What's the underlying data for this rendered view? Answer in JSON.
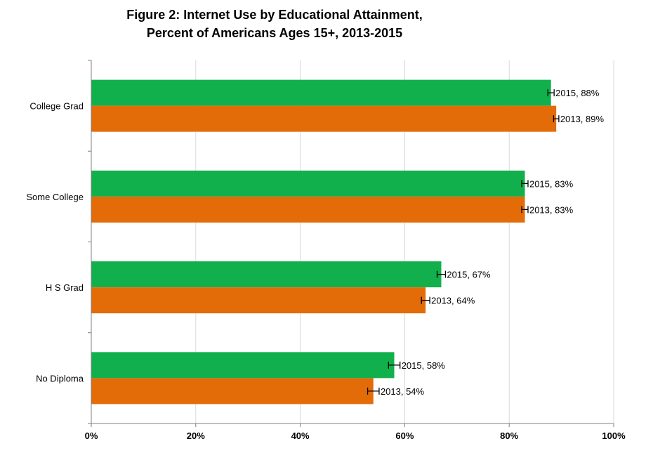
{
  "chart_data": {
    "type": "bar",
    "orientation": "horizontal",
    "title": [
      "Figure 2: Internet Use by Educational Attainment,",
      "Percent of Americans Ages 15+, 2013-2015"
    ],
    "categories": [
      "College Grad",
      "Some College",
      "H S Grad",
      "No Diploma"
    ],
    "series": [
      {
        "name": "2015",
        "color": "#12b04c",
        "values": [
          88,
          83,
          67,
          58
        ],
        "labels": [
          "2015, 88%",
          "2015, 83%",
          "2015, 67%",
          "2015, 58%"
        ]
      },
      {
        "name": "2013",
        "color": "#e36c09",
        "values": [
          89,
          83,
          64,
          54
        ],
        "labels": [
          "2013, 89%",
          "2013, 83%",
          "2013, 64%",
          "2013, 54%"
        ]
      }
    ],
    "error_bars": {
      "2015": [
        0.6,
        0.6,
        0.8,
        1.1
      ],
      "2013": [
        0.5,
        0.6,
        0.8,
        1.1
      ]
    },
    "xlim": [
      0,
      100
    ],
    "xticks": [
      0,
      20,
      40,
      60,
      80,
      100
    ],
    "xtick_labels": [
      "0%",
      "20%",
      "40%",
      "60%",
      "80%",
      "100%"
    ],
    "grid": true,
    "legend": "none"
  }
}
